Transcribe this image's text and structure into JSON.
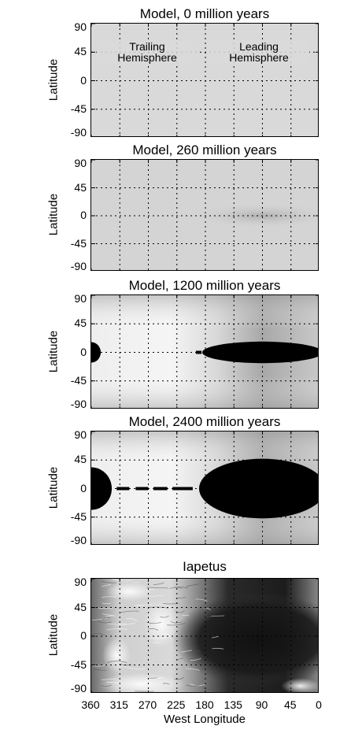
{
  "panels": [
    {
      "title": "Model, 0 million years",
      "ylabel": "Latitude",
      "annotations": {
        "left": "Trailing\nHemisphere",
        "right": "Leading\nHemisphere"
      }
    },
    {
      "title": "Model, 260 million years",
      "ylabel": "Latitude"
    },
    {
      "title": "Model, 1200 million years",
      "ylabel": "Latitude"
    },
    {
      "title": "Model, 2400 million years",
      "ylabel": "Latitude"
    },
    {
      "title": "Iapetus",
      "ylabel": "Latitude"
    }
  ],
  "y_ticks": [
    "90",
    "45",
    "0",
    "-45",
    "-90"
  ],
  "x_ticks": [
    "360",
    "315",
    "270",
    "225",
    "180",
    "135",
    "90",
    "45",
    "0"
  ],
  "xlabel": "West Longitude",
  "colors": {
    "background": "#ffffff",
    "uniform_gray": "#d9d9d9",
    "dark": "#000000",
    "bright": "#f7f7f7"
  }
}
